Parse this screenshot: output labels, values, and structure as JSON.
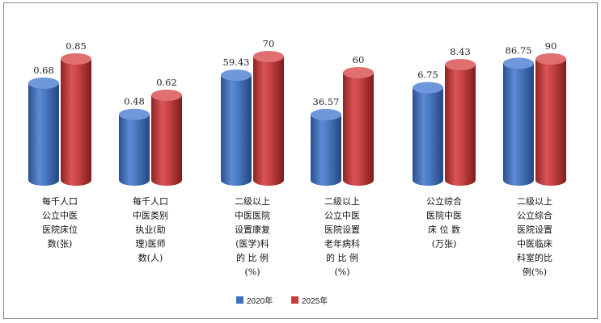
{
  "chart_data": {
    "type": "bar",
    "style": "3d-cylinder",
    "title": "",
    "xlabel": "",
    "ylabel": "",
    "grid": false,
    "legend_position": "bottom",
    "categories": [
      [
        "每千人口",
        "公立中医",
        "医院床位",
        "数(张)"
      ],
      [
        "每千人口",
        "中医类别",
        "执业(助",
        "理)医师",
        "数(人)"
      ],
      [
        "二级以上",
        "中医医院",
        "设置康复",
        "(医学)科",
        "的 比 例",
        "(%)"
      ],
      [
        "二级以上",
        "公立中医",
        "医院设置",
        "老年病科",
        "的 比 例",
        "(%)"
      ],
      [
        "公立综合",
        "医院中医",
        "床 位 数",
        "(万张)"
      ],
      [
        "二级以上",
        "公立综合",
        "医院设置",
        "中医临床",
        "科室的比",
        "例(%)"
      ]
    ],
    "series": [
      {
        "name": "2020年",
        "color": "#3f6fbd",
        "values": [
          0.68,
          0.48,
          59.43,
          36.57,
          6.75,
          86.75
        ],
        "labels": [
          "0.68",
          "0.48",
          "59.43",
          "36.57",
          "6.75",
          "86.75"
        ]
      },
      {
        "name": "2025年",
        "color": "#c73a3a",
        "values": [
          0.85,
          0.62,
          70,
          60,
          8.43,
          90
        ],
        "labels": [
          "0.85",
          "0.62",
          "70",
          "60",
          "8.43",
          "90"
        ]
      }
    ]
  }
}
